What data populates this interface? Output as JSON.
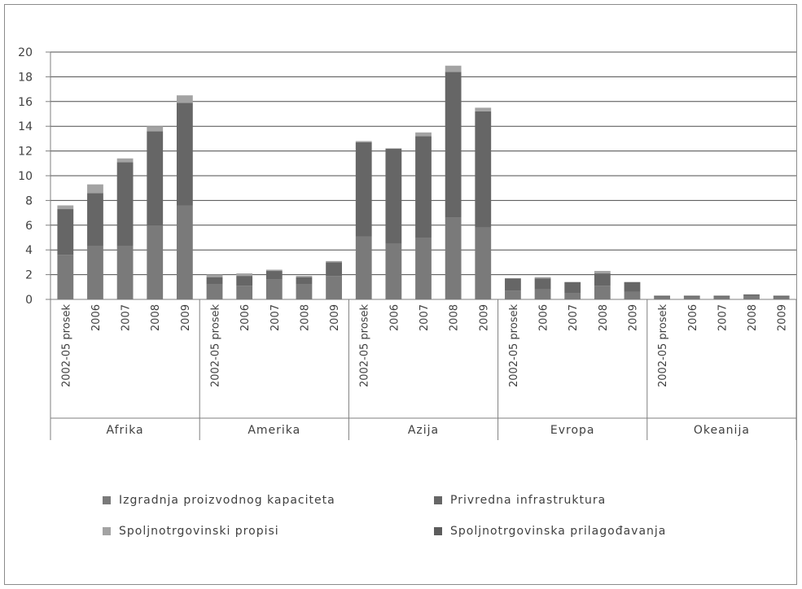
{
  "chart_data": {
    "type": "bar",
    "stacked": true,
    "ylim": [
      0,
      20
    ],
    "yticks": [
      0,
      2,
      4,
      6,
      8,
      10,
      12,
      14,
      16,
      18,
      20
    ],
    "grid": true,
    "legend_position": "bottom",
    "groups": [
      {
        "label": "Afrika",
        "bars": [
          {
            "label": "2002-05 prosek",
            "values": [
              3.6,
              3.7,
              0.3,
              0.0
            ]
          },
          {
            "label": "2006",
            "values": [
              4.3,
              4.3,
              0.7,
              0.0
            ]
          },
          {
            "label": "2007",
            "values": [
              4.3,
              6.8,
              0.3,
              0.0
            ]
          },
          {
            "label": "2008",
            "values": [
              6.0,
              7.6,
              0.4,
              0.0
            ]
          },
          {
            "label": "2009",
            "values": [
              7.6,
              8.3,
              0.6,
              0.0
            ]
          }
        ]
      },
      {
        "label": "Amerika",
        "bars": [
          {
            "label": "2002-05 prosek",
            "values": [
              1.2,
              0.6,
              0.2,
              0.0
            ]
          },
          {
            "label": "2006",
            "values": [
              1.1,
              0.8,
              0.2,
              0.0
            ]
          },
          {
            "label": "2007",
            "values": [
              1.6,
              0.7,
              0.1,
              0.0
            ]
          },
          {
            "label": "2008",
            "values": [
              1.2,
              0.6,
              0.1,
              0.0
            ]
          },
          {
            "label": "2009",
            "values": [
              1.9,
              1.1,
              0.1,
              0.0
            ]
          }
        ]
      },
      {
        "label": "Azija",
        "bars": [
          {
            "label": "2002-05 prosek",
            "values": [
              5.1,
              7.6,
              0.1,
              0.0
            ]
          },
          {
            "label": "2006",
            "values": [
              4.5,
              7.7,
              0.0,
              0.0
            ]
          },
          {
            "label": "2007",
            "values": [
              5.0,
              8.2,
              0.3,
              0.0
            ]
          },
          {
            "label": "2008",
            "values": [
              6.6,
              11.8,
              0.5,
              0.0
            ]
          },
          {
            "label": "2009",
            "values": [
              5.8,
              9.4,
              0.3,
              0.0
            ]
          }
        ]
      },
      {
        "label": "Evropa",
        "bars": [
          {
            "label": "2002-05 prosek",
            "values": [
              0.7,
              1.0,
              0.0,
              0.0
            ]
          },
          {
            "label": "2006",
            "values": [
              0.8,
              0.9,
              0.1,
              0.0
            ]
          },
          {
            "label": "2007",
            "values": [
              0.5,
              0.9,
              0.0,
              0.0
            ]
          },
          {
            "label": "2008",
            "values": [
              1.1,
              1.0,
              0.2,
              0.0
            ]
          },
          {
            "label": "2009",
            "values": [
              0.6,
              0.8,
              0.0,
              0.0
            ]
          }
        ]
      },
      {
        "label": "Okeanija",
        "bars": [
          {
            "label": "2002-05 prosek",
            "values": [
              0.2,
              0.1,
              0.0,
              0.0
            ]
          },
          {
            "label": "2006",
            "values": [
              0.2,
              0.1,
              0.0,
              0.0
            ]
          },
          {
            "label": "2007",
            "values": [
              0.2,
              0.1,
              0.0,
              0.0
            ]
          },
          {
            "label": "2008",
            "values": [
              0.3,
              0.1,
              0.0,
              0.0
            ]
          },
          {
            "label": "2009",
            "values": [
              0.2,
              0.1,
              0.0,
              0.0
            ]
          }
        ]
      }
    ],
    "series": [
      {
        "name": "Izgradnja proizvodnog kapaciteta",
        "color": "#7a7a7a"
      },
      {
        "name": "Privredna infrastruktura",
        "color": "#666666"
      },
      {
        "name": "Spoljnotrgovinski propisi",
        "color": "#a3a3a3"
      },
      {
        "name": "Spoljnotrgovinska prilagođavanja",
        "color": "#5c5c5c"
      }
    ],
    "colors": {
      "axis": "#7f7f7f",
      "grid": "#4d4d4d",
      "text": "#404040"
    }
  }
}
